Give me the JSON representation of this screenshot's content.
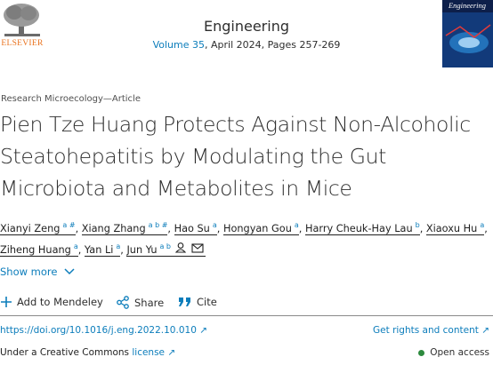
{
  "header": {
    "publisher": "ELSEVIER",
    "journal": "Engineering",
    "volume": "Volume 35",
    "issue_details": ", April 2024, Pages 257-269",
    "cover_title": "Engineering"
  },
  "article": {
    "section": "Research Microecology—Article",
    "title": "Pien Tze Huang Protects Against Non-Alcoholic Steatohepatitis by Modulating the Gut Microbiota and Metabolites in Mice",
    "author_separator": ",",
    "authors": [
      {
        "name": "Xianyi Zeng",
        "sup": "a #"
      },
      {
        "name": "Xiang Zhang",
        "sup": "a b #"
      },
      {
        "name": "Hao Su",
        "sup": "a"
      },
      {
        "name": "Hongyan Gou",
        "sup": "a"
      },
      {
        "name": "Harry Cheuk-Hay Lau",
        "sup": "b"
      },
      {
        "name": "Xiaoxu Hu",
        "sup": "a"
      },
      {
        "name": "Ziheng Huang",
        "sup": "a"
      },
      {
        "name": "Yan Li",
        "sup": "a"
      },
      {
        "name": "Jun Yu",
        "sup": "a b"
      }
    ],
    "show_more": "Show more"
  },
  "actions": [
    "Add to Mendeley",
    "Share",
    "Cite"
  ],
  "links": {
    "doi": "https://doi.org/10.1016/j.eng.2022.10.010",
    "rights": "Get rights and content",
    "license_prefix": "Under a Creative Commons",
    "license_link": "license",
    "open_access": "Open access"
  }
}
